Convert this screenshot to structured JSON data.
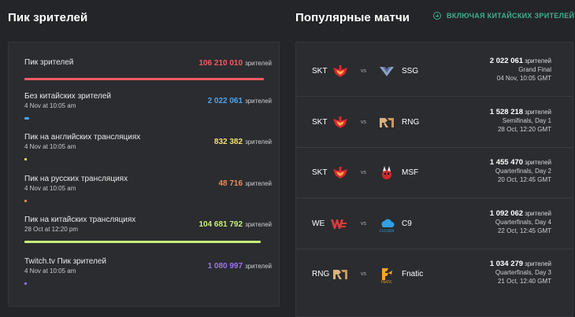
{
  "peak_section": {
    "title": "Пик зрителей",
    "rows": [
      {
        "label": "Пик зрителей",
        "date": "",
        "value": "106 210 010",
        "unit": "зрителей",
        "color": "#f05a64",
        "fraction": 1.0
      },
      {
        "label": "Без китайских зрителей",
        "date": "4 Nov at 10:05 am",
        "value": "2 022 061",
        "unit": "зрителей",
        "color": "#4fa3e8",
        "fraction": 0.019
      },
      {
        "label": "Пик на английских трансляциях",
        "date": "4 Nov at 10:05 am",
        "value": "832 382",
        "unit": "зрителей",
        "color": "#f0e070",
        "fraction": 0.008
      },
      {
        "label": "Пик на русских трансляциях",
        "date": "4 Nov at 10:05 am",
        "value": "48 716",
        "unit": "зрителей",
        "color": "#ee8a5a",
        "fraction": 0.0005
      },
      {
        "label": "Пик на китайских трансляциях",
        "date": "28 Oct at 12:20 pm",
        "value": "104 681 792",
        "unit": "зрителей",
        "color": "#c6ec7a",
        "fraction": 0.986
      },
      {
        "label": "Twitch.tv Пик зрителей",
        "date": "4 Nov at 10:05 am",
        "value": "1 080 997",
        "unit": "зрителей",
        "color": "#9a74e8",
        "fraction": 0.01
      }
    ]
  },
  "matches_section": {
    "title": "Популярные матчи",
    "toggle_label": "включая китайских зрителей",
    "matches": [
      {
        "team1": "SKT",
        "team1_logo": "skt-logo",
        "vs": "vs",
        "team2": "SSG",
        "team2_logo": "ssg-logo",
        "viewers": "2 022 061",
        "unit": "зрителей",
        "stage": "Grand Final",
        "date": "04 Nov, 10:05 GMT"
      },
      {
        "team1": "SKT",
        "team1_logo": "skt-logo",
        "vs": "vs",
        "team2": "RNG",
        "team2_logo": "rng-logo",
        "viewers": "1 528 218",
        "unit": "зрителей",
        "stage": "Semifinals, Day 1",
        "date": "28 Oct, 12:20 GMT"
      },
      {
        "team1": "SKT",
        "team1_logo": "skt-logo",
        "vs": "vs",
        "team2": "MSF",
        "team2_logo": "msf-logo",
        "viewers": "1 455 470",
        "unit": "зрителей",
        "stage": "Quarterfinals, Day 2",
        "date": "20 Oct, 12:45 GMT"
      },
      {
        "team1": "WE",
        "team1_logo": "we-logo",
        "vs": "vs",
        "team2": "C9",
        "team2_logo": "c9-logo",
        "viewers": "1 092 062",
        "unit": "зрителей",
        "stage": "Quarterfinals, Day 4",
        "date": "22 Oct, 12:45 GMT"
      },
      {
        "team1": "RNG",
        "team1_logo": "rng-logo",
        "vs": "vs",
        "team2": "Fnatic",
        "team2_logo": "fnatic-logo",
        "viewers": "1 034 279",
        "unit": "зрителей",
        "stage": "Quarterfinals, Day 3",
        "date": "21 Oct, 12:40 GMT"
      }
    ]
  }
}
